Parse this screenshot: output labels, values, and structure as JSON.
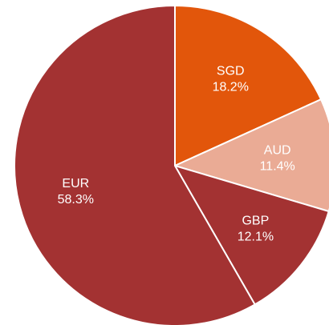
{
  "chart_data": {
    "type": "pie",
    "categories": [
      "SGD",
      "AUD",
      "GBP",
      "EUR"
    ],
    "values": [
      18.2,
      11.4,
      12.1,
      58.3
    ],
    "value_labels": [
      "18.2%",
      "11.4%",
      "12.1%",
      "58.3%"
    ],
    "colors": [
      "#e2560b",
      "#eaab95",
      "#a33232",
      "#a33232"
    ]
  }
}
